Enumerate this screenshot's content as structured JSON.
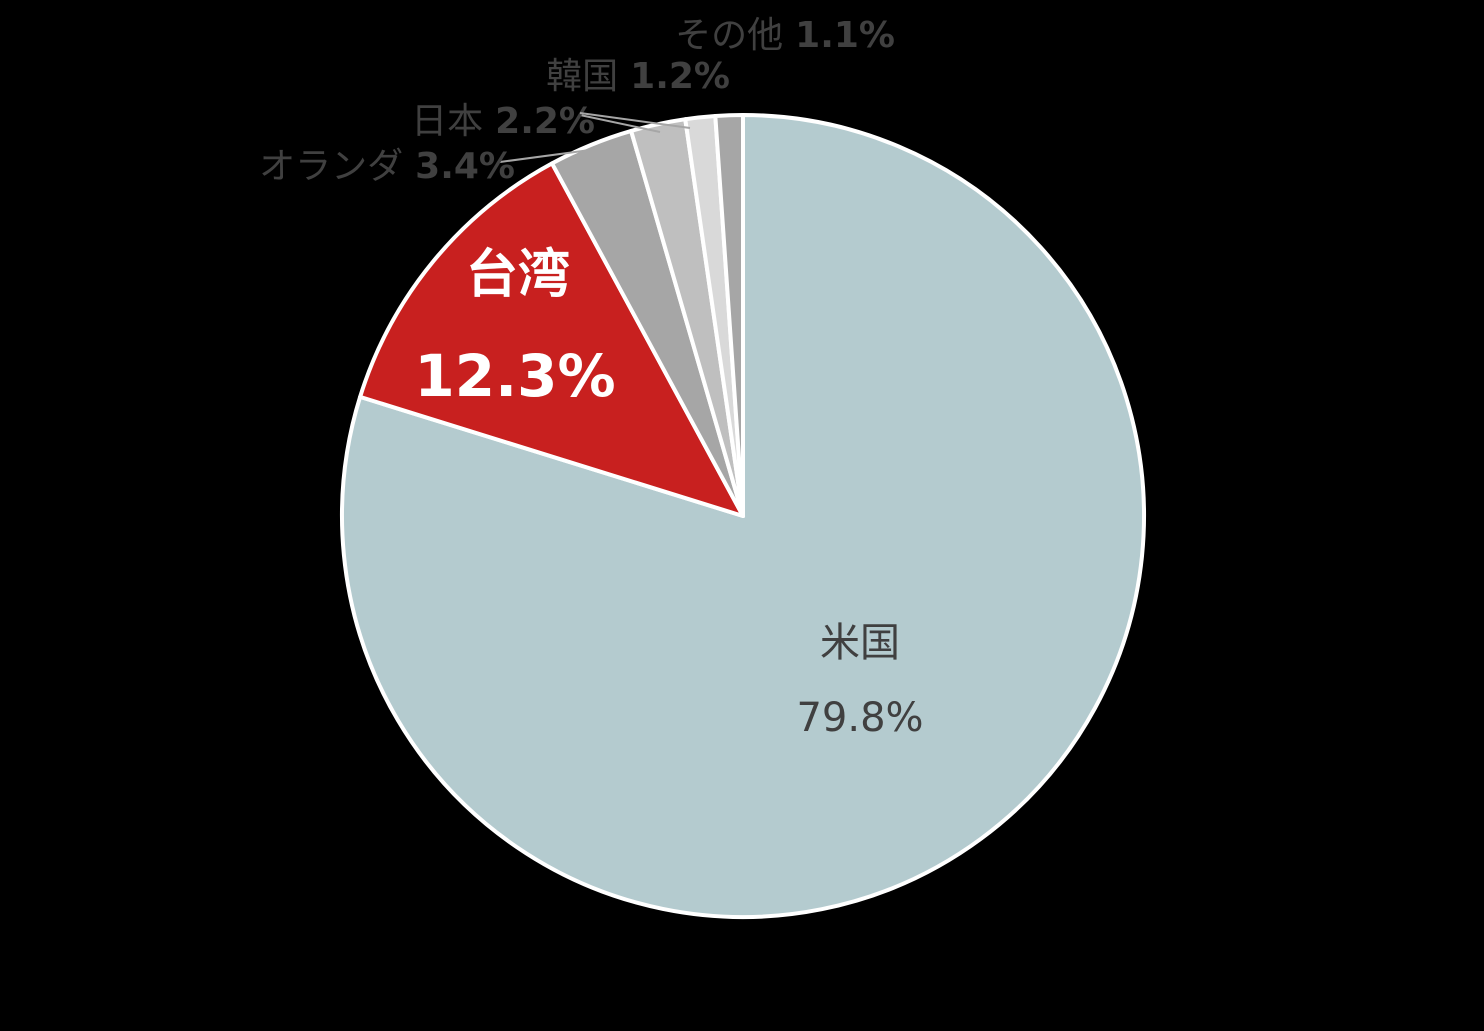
{
  "chart_data": {
    "type": "pie",
    "categories": [
      "米国",
      "台湾",
      "オランダ",
      "日本",
      "韓国",
      "その他"
    ],
    "values": [
      79.8,
      12.3,
      3.4,
      2.2,
      1.2,
      1.1
    ],
    "value_labels": [
      "79.8%",
      "12.3%",
      "3.4%",
      "2.2%",
      "1.2%",
      "1.1%"
    ],
    "colors": [
      "#b4cbcf",
      "#c8201f",
      "#a6a6a6",
      "#bfbfbf",
      "#d9d9d9",
      "#a6a6a6"
    ],
    "start_angle": 90,
    "direction": "clockwise"
  }
}
